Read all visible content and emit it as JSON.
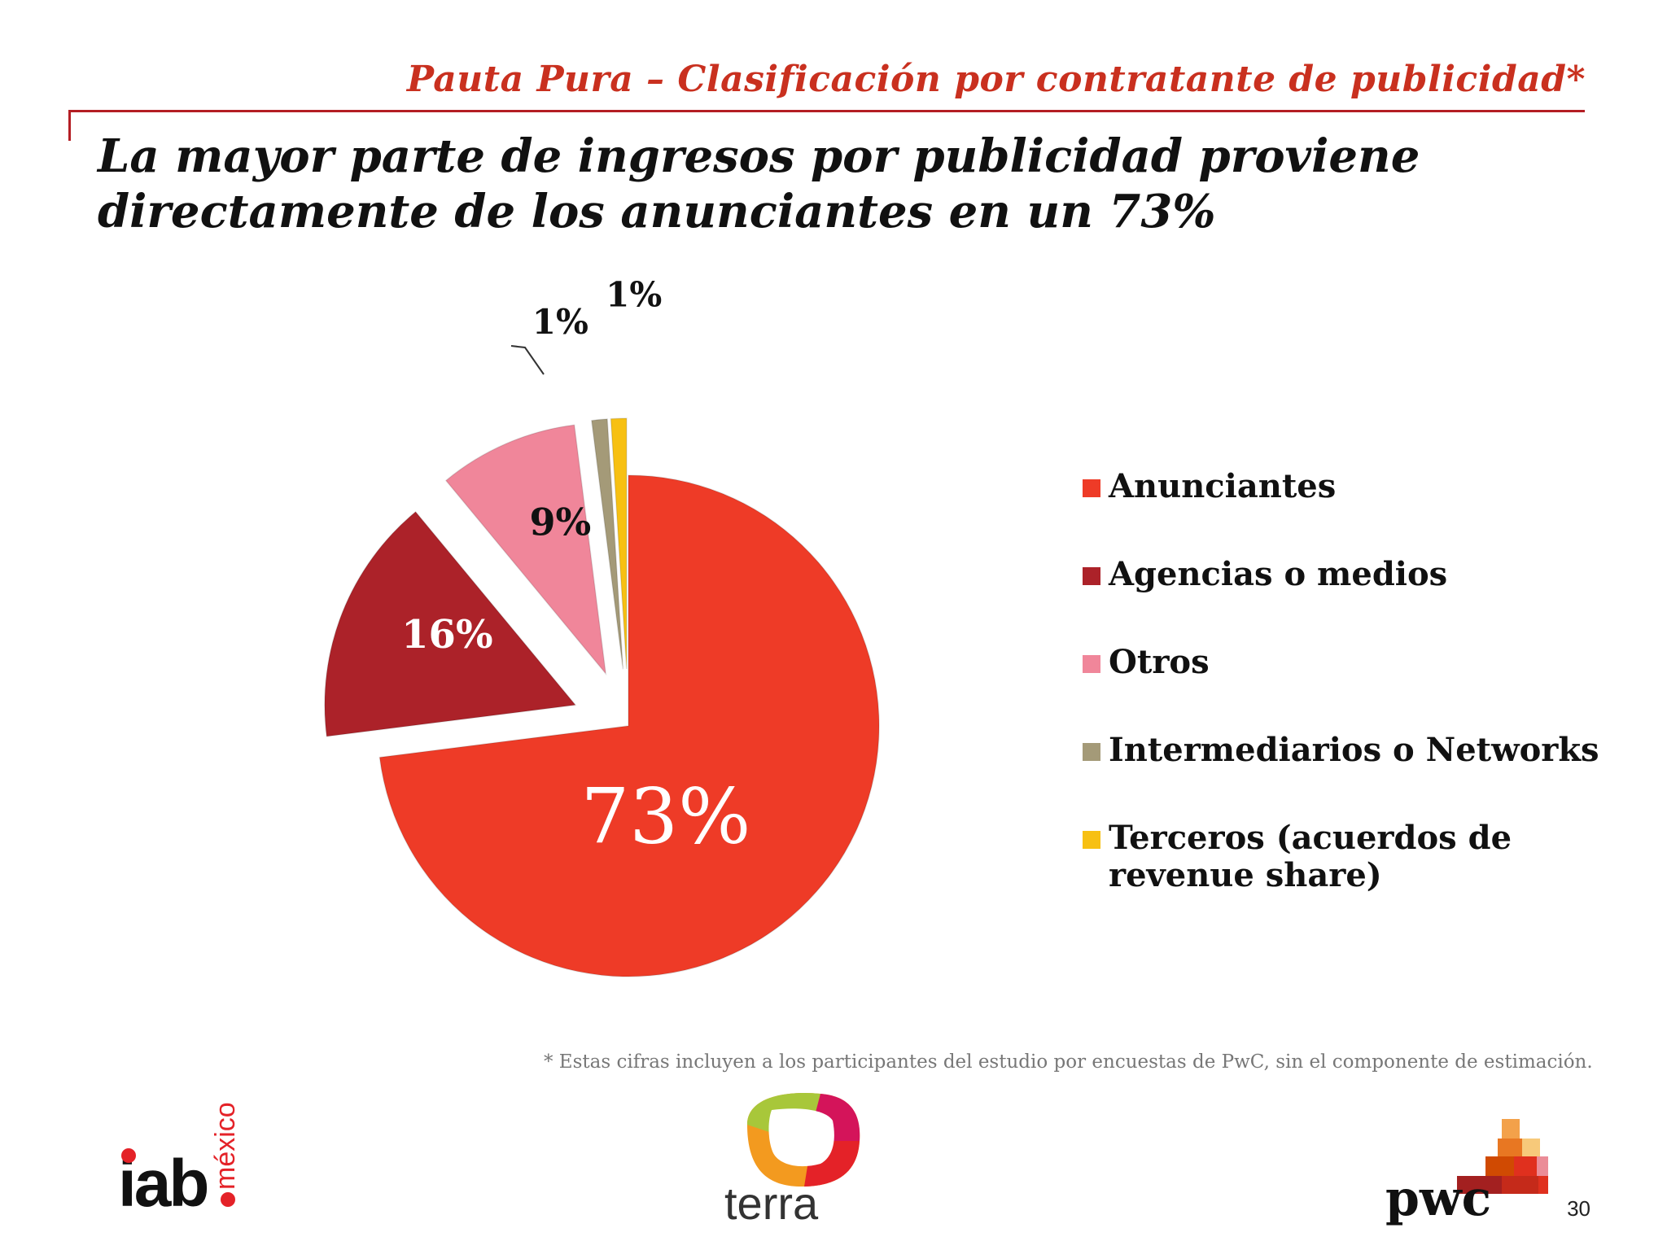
{
  "header": {
    "subtitle": "Pauta Pura – Clasificación por contratante de publicidad*",
    "title_line1": "La mayor parte de ingresos por publicidad proviene",
    "title_line2": "directamente de los anunciantes en un 73%"
  },
  "chart_data": {
    "type": "pie",
    "exploded": true,
    "series": [
      {
        "name": "Anunciantes",
        "value": 73,
        "label": "73%",
        "color": "#ee3b27"
      },
      {
        "name": "Agencias o medios",
        "value": 16,
        "label": "16%",
        "color": "#ac2229"
      },
      {
        "name": "Otros",
        "value": 9,
        "label": "9%",
        "color": "#f0869a"
      },
      {
        "name": "Intermediarios o Networks",
        "value": 1,
        "label": "1%",
        "color": "#a49a78"
      },
      {
        "name": "Terceros  (acuerdos de revenue share)",
        "value": 1,
        "label": "1%",
        "color": "#f7c012"
      }
    ],
    "legend_position": "right"
  },
  "legend": {
    "items": [
      {
        "label": "Anunciantes",
        "color": "#ee3b27"
      },
      {
        "label": "Agencias o medios",
        "color": "#ac2229"
      },
      {
        "label": "Otros",
        "color": "#f0869a"
      },
      {
        "label": "Intermediarios o Networks",
        "color": "#a49a78"
      },
      {
        "label": "Terceros  (acuerdos de",
        "label2": "revenue share)",
        "color": "#f7c012"
      }
    ]
  },
  "footnote": "* Estas cifras incluyen a los participantes del estudio por encuestas de PwC, sin el componente de estimación.",
  "logos": {
    "iab": "iab",
    "iab_sub": "méxico",
    "terra": "terra",
    "pwc": "pwc"
  },
  "page_number": "30"
}
